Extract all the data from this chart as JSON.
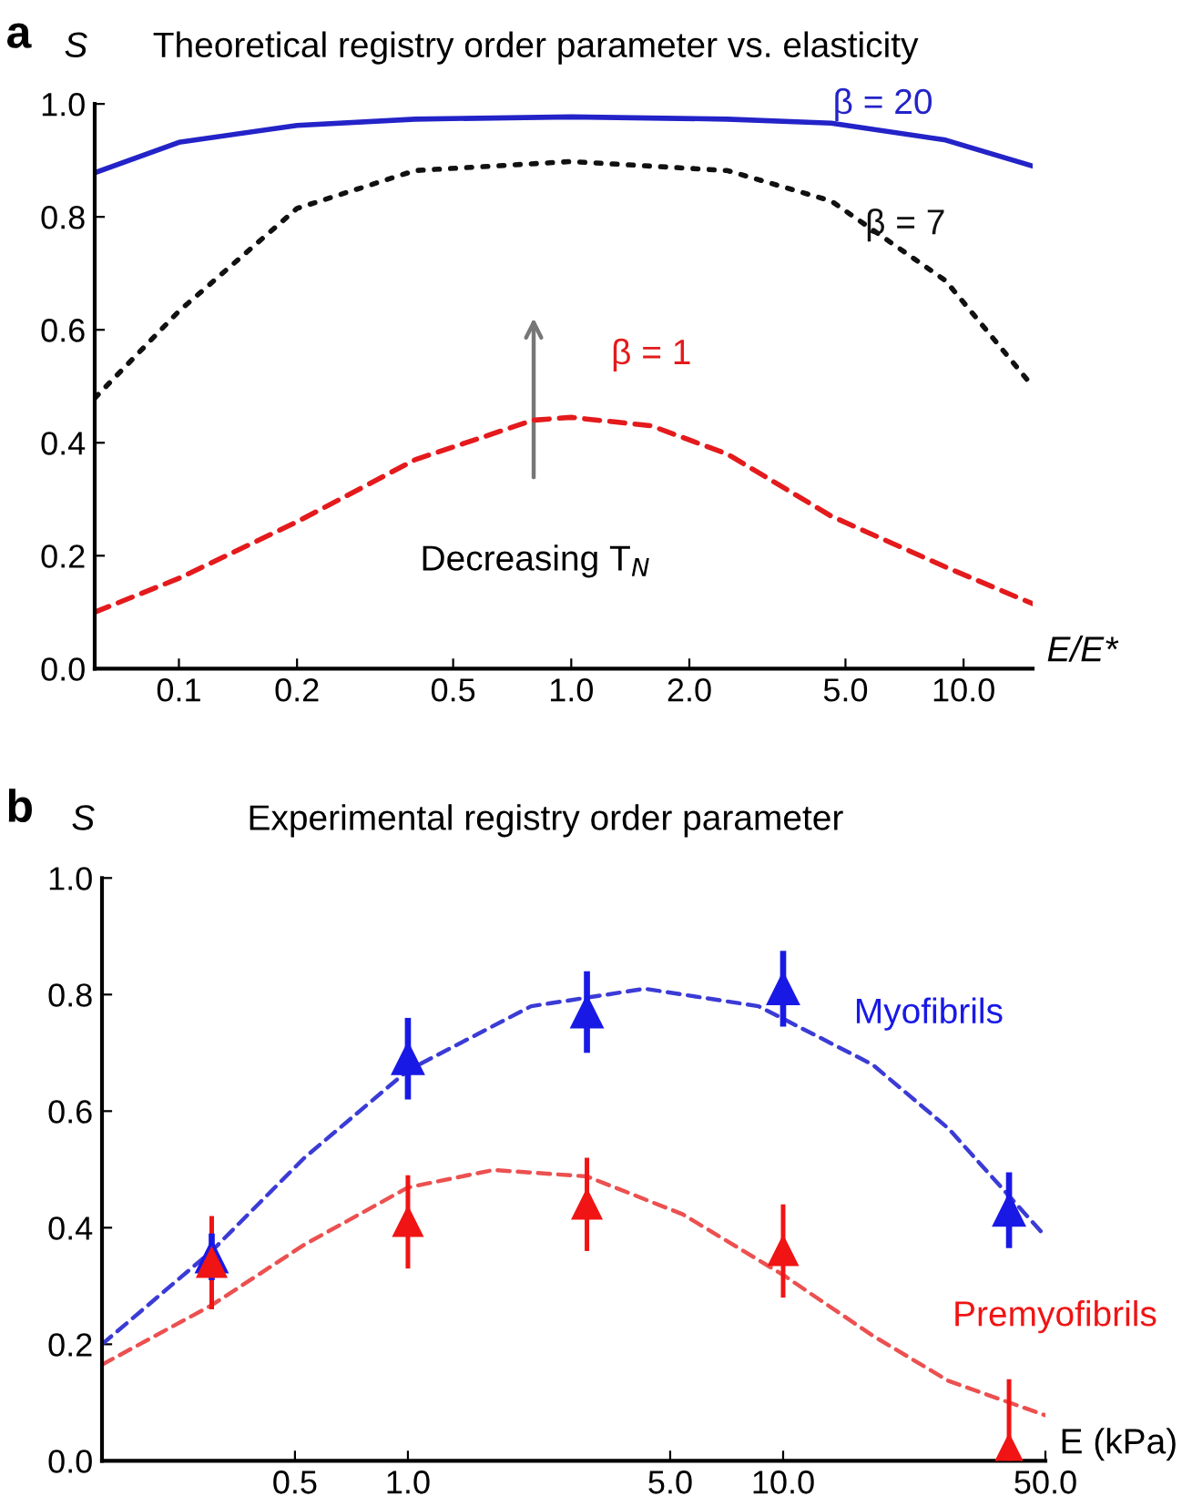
{
  "chart_data": [
    {
      "type": "line",
      "title": "Theoretical registry order parameter vs. elasticity",
      "xlabel": "E/E*",
      "ylabel": "S",
      "log": "x",
      "grid": false,
      "legend": false,
      "xlim": [
        0.061,
        15
      ],
      "ylim": [
        0,
        1
      ],
      "xticks": [
        {
          "value": 0.1,
          "label": "0.1"
        },
        {
          "value": 0.2,
          "label": "0.2"
        },
        {
          "value": 0.5,
          "label": "0.5"
        },
        {
          "value": 1,
          "label": "1.0"
        },
        {
          "value": 2,
          "label": "2.0"
        },
        {
          "value": 5,
          "label": "5.0"
        },
        {
          "value": 10,
          "label": "10.0"
        }
      ],
      "yticks": [
        {
          "value": 0,
          "label": "0.0"
        },
        {
          "value": 0.2,
          "label": "0.2"
        },
        {
          "value": 0.4,
          "label": "0.4"
        },
        {
          "value": 0.6,
          "label": "0.6"
        },
        {
          "value": 0.8,
          "label": "0.8"
        },
        {
          "value": 1,
          "label": "1.0"
        }
      ],
      "series": [
        {
          "name": "β = 20",
          "color": "#2323c8",
          "line_style": "solid",
          "x": [
            0.061,
            0.1,
            0.2,
            0.4,
            1.0,
            2.5,
            4.6,
            9,
            15
          ],
          "values": [
            0.878,
            0.932,
            0.962,
            0.973,
            0.977,
            0.973,
            0.966,
            0.936,
            0.89
          ]
        },
        {
          "name": "β = 7",
          "color": "#111111",
          "line_style": "dotted",
          "x": [
            0.061,
            0.1,
            0.2,
            0.4,
            1.0,
            2.5,
            4.6,
            9,
            15
          ],
          "values": [
            0.479,
            0.633,
            0.815,
            0.882,
            0.898,
            0.882,
            0.828,
            0.687,
            0.5
          ]
        },
        {
          "name": "β = 1",
          "color": "#e41a1c",
          "line_style": "dashed",
          "x": [
            0.061,
            0.1,
            0.2,
            0.4,
            0.8,
            1.0,
            1.6,
            2.5,
            4.6,
            9,
            15
          ],
          "values": [
            0.1,
            0.16,
            0.26,
            0.37,
            0.44,
            0.445,
            0.43,
            0.38,
            0.27,
            0.18,
            0.115
          ]
        }
      ],
      "annotations": [
        "a",
        "Decreasing T$_{N}$"
      ]
    },
    {
      "type": "scatter",
      "title": "Experimental registry order parameter",
      "xlabel": "E (kPa)",
      "ylabel": "S",
      "log": "x",
      "grid": false,
      "legend": false,
      "xlim": [
        0.153,
        50
      ],
      "ylim": [
        0,
        1
      ],
      "xticks": [
        {
          "value": 0.5,
          "label": "0.5"
        },
        {
          "value": 1,
          "label": "1.0"
        },
        {
          "value": 5,
          "label": "5.0"
        },
        {
          "value": 10,
          "label": "10.0"
        },
        {
          "value": 50,
          "label": "50.0"
        }
      ],
      "yticks": [
        {
          "value": 0,
          "label": "0.0"
        },
        {
          "value": 0.2,
          "label": "0.2"
        },
        {
          "value": 0.4,
          "label": "0.4"
        },
        {
          "value": 0.6,
          "label": "0.6"
        },
        {
          "value": 0.8,
          "label": "0.8"
        },
        {
          "value": 1,
          "label": "1.0"
        }
      ],
      "series": [
        {
          "type": "line",
          "color": "#3b3bd6",
          "line_style": "dashed",
          "x": [
            0.153,
            0.3,
            0.53,
            1,
            2.13,
            4.28,
            8.6,
            17.3,
            27.6,
            50
          ],
          "values": [
            0.2,
            0.36,
            0.52,
            0.67,
            0.78,
            0.81,
            0.78,
            0.68,
            0.57,
            0.385
          ]
        },
        {
          "type": "line",
          "color": "#ec5050",
          "line_style": "dashed",
          "x": [
            0.153,
            0.3,
            0.53,
            1,
            1.69,
            3,
            5.4,
            10,
            17.3,
            27.6,
            50
          ],
          "values": [
            0.165,
            0.267,
            0.371,
            0.469,
            0.499,
            0.488,
            0.423,
            0.319,
            0.215,
            0.137,
            0.078
          ]
        },
        {
          "name": "Myofibrils",
          "color": "#1919e6",
          "marker": "triangle",
          "x": [
            0.3,
            1,
            3,
            10,
            40
          ],
          "values": [
            0.35,
            0.69,
            0.77,
            0.81,
            0.43
          ],
          "errors": [
            0.04,
            0.07,
            0.07,
            0.065,
            0.065
          ]
        },
        {
          "name": "Premyofibrils",
          "color": "#f01414",
          "marker": "triangle",
          "x": [
            0.3,
            1,
            3,
            10,
            40
          ],
          "values": [
            0.34,
            0.41,
            0.44,
            0.36,
            0.02
          ],
          "errors": [
            0.08,
            0.08,
            0.08,
            0.08,
            [
              0.0,
              0.14
            ]
          ]
        }
      ],
      "annotations": [
        "b"
      ]
    }
  ]
}
